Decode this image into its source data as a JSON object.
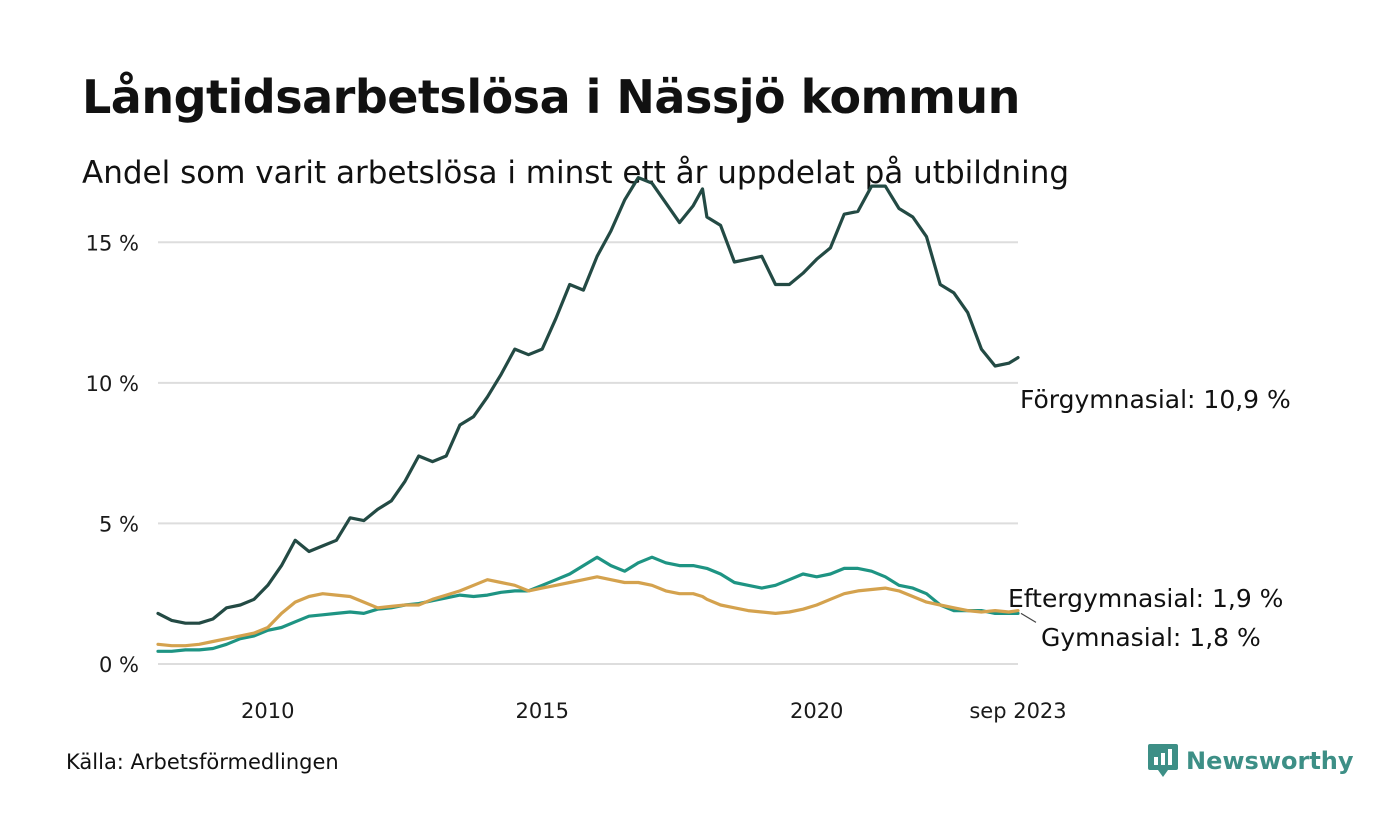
{
  "header": {
    "title": "Långtidsarbetslösa i Nässjö kommun",
    "subtitle": "Andel som varit arbetslösa i minst ett år uppdelat på utbildning"
  },
  "footer": {
    "source": "Källa: Arbetsförmedlingen",
    "brand": "Newsworthy",
    "brand_icon": "newsworthy-logo-icon"
  },
  "colors": {
    "forgymnasial": "#234a44",
    "gymnasial": "#1e9483",
    "eftergymnasial": "#d4a24e",
    "grid": "#dddddd",
    "brand": "#3d8f86"
  },
  "chart_data": {
    "type": "line",
    "title": "Långtidsarbetslösa i Nässjö kommun",
    "subtitle": "Andel som varit arbetslösa i minst ett år uppdelat på utbildning",
    "xlabel": "",
    "ylabel": "",
    "ylim": [
      0,
      17.5
    ],
    "x_range": [
      2008.0,
      2023.667
    ],
    "y_ticks": [
      0,
      5,
      10,
      15
    ],
    "y_tick_labels": [
      "0 %",
      "5 %",
      "10 %",
      "15 %"
    ],
    "x_ticks": [
      2010,
      2015,
      2020,
      2023.667
    ],
    "x_tick_labels": [
      "2010",
      "2015",
      "2020",
      "sep 2023"
    ],
    "grid": true,
    "series": [
      {
        "name": "Förgymnasial",
        "label": "Förgymnasial: 10,9 %",
        "color": "#234a44",
        "points": [
          [
            2008.0,
            1.8
          ],
          [
            2008.25,
            1.55
          ],
          [
            2008.5,
            1.45
          ],
          [
            2008.75,
            1.45
          ],
          [
            2009.0,
            1.6
          ],
          [
            2009.25,
            2.0
          ],
          [
            2009.5,
            2.1
          ],
          [
            2009.75,
            2.3
          ],
          [
            2010.0,
            2.8
          ],
          [
            2010.25,
            3.5
          ],
          [
            2010.5,
            4.4
          ],
          [
            2010.75,
            4.0
          ],
          [
            2011.0,
            4.2
          ],
          [
            2011.25,
            4.4
          ],
          [
            2011.5,
            5.2
          ],
          [
            2011.75,
            5.1
          ],
          [
            2012.0,
            5.5
          ],
          [
            2012.25,
            5.8
          ],
          [
            2012.5,
            6.5
          ],
          [
            2012.75,
            7.4
          ],
          [
            2013.0,
            7.2
          ],
          [
            2013.25,
            7.4
          ],
          [
            2013.5,
            8.5
          ],
          [
            2013.75,
            8.8
          ],
          [
            2014.0,
            9.5
          ],
          [
            2014.25,
            10.3
          ],
          [
            2014.5,
            11.2
          ],
          [
            2014.75,
            11.0
          ],
          [
            2015.0,
            11.2
          ],
          [
            2015.25,
            12.3
          ],
          [
            2015.5,
            13.5
          ],
          [
            2015.75,
            13.3
          ],
          [
            2016.0,
            14.5
          ],
          [
            2016.25,
            15.4
          ],
          [
            2016.5,
            16.5
          ],
          [
            2016.75,
            17.3
          ],
          [
            2017.0,
            17.1
          ],
          [
            2017.25,
            16.4
          ],
          [
            2017.5,
            15.7
          ],
          [
            2017.75,
            16.3
          ],
          [
            2017.92,
            16.9
          ],
          [
            2018.0,
            15.9
          ],
          [
            2018.25,
            15.6
          ],
          [
            2018.5,
            14.3
          ],
          [
            2018.75,
            14.4
          ],
          [
            2019.0,
            14.5
          ],
          [
            2019.25,
            13.5
          ],
          [
            2019.5,
            13.5
          ],
          [
            2019.75,
            13.9
          ],
          [
            2020.0,
            14.4
          ],
          [
            2020.25,
            14.8
          ],
          [
            2020.5,
            16.0
          ],
          [
            2020.75,
            16.1
          ],
          [
            2021.0,
            17.0
          ],
          [
            2021.25,
            17.0
          ],
          [
            2021.5,
            16.2
          ],
          [
            2021.75,
            15.9
          ],
          [
            2022.0,
            15.2
          ],
          [
            2022.25,
            13.5
          ],
          [
            2022.5,
            13.2
          ],
          [
            2022.75,
            12.5
          ],
          [
            2023.0,
            11.2
          ],
          [
            2023.25,
            10.6
          ],
          [
            2023.5,
            10.7
          ],
          [
            2023.667,
            10.9
          ]
        ]
      },
      {
        "name": "Gymnasial",
        "label": "Gymnasial:  1,8 %",
        "color": "#1e9483",
        "points": [
          [
            2008.0,
            0.45
          ],
          [
            2008.25,
            0.45
          ],
          [
            2008.5,
            0.5
          ],
          [
            2008.75,
            0.5
          ],
          [
            2009.0,
            0.55
          ],
          [
            2009.25,
            0.7
          ],
          [
            2009.5,
            0.9
          ],
          [
            2009.75,
            1.0
          ],
          [
            2010.0,
            1.2
          ],
          [
            2010.25,
            1.3
          ],
          [
            2010.5,
            1.5
          ],
          [
            2010.75,
            1.7
          ],
          [
            2011.0,
            1.75
          ],
          [
            2011.25,
            1.8
          ],
          [
            2011.5,
            1.85
          ],
          [
            2011.75,
            1.8
          ],
          [
            2012.0,
            1.95
          ],
          [
            2012.25,
            2.0
          ],
          [
            2012.5,
            2.1
          ],
          [
            2012.75,
            2.15
          ],
          [
            2013.0,
            2.25
          ],
          [
            2013.25,
            2.35
          ],
          [
            2013.5,
            2.45
          ],
          [
            2013.75,
            2.4
          ],
          [
            2014.0,
            2.45
          ],
          [
            2014.25,
            2.55
          ],
          [
            2014.5,
            2.6
          ],
          [
            2014.75,
            2.6
          ],
          [
            2015.0,
            2.8
          ],
          [
            2015.25,
            3.0
          ],
          [
            2015.5,
            3.2
          ],
          [
            2015.75,
            3.5
          ],
          [
            2016.0,
            3.8
          ],
          [
            2016.25,
            3.5
          ],
          [
            2016.5,
            3.3
          ],
          [
            2016.75,
            3.6
          ],
          [
            2017.0,
            3.8
          ],
          [
            2017.25,
            3.6
          ],
          [
            2017.5,
            3.5
          ],
          [
            2017.75,
            3.5
          ],
          [
            2018.0,
            3.4
          ],
          [
            2018.25,
            3.2
          ],
          [
            2018.5,
            2.9
          ],
          [
            2018.75,
            2.8
          ],
          [
            2019.0,
            2.7
          ],
          [
            2019.25,
            2.8
          ],
          [
            2019.5,
            3.0
          ],
          [
            2019.75,
            3.2
          ],
          [
            2020.0,
            3.1
          ],
          [
            2020.25,
            3.2
          ],
          [
            2020.5,
            3.4
          ],
          [
            2020.75,
            3.4
          ],
          [
            2021.0,
            3.3
          ],
          [
            2021.25,
            3.1
          ],
          [
            2021.5,
            2.8
          ],
          [
            2021.75,
            2.7
          ],
          [
            2022.0,
            2.5
          ],
          [
            2022.25,
            2.1
          ],
          [
            2022.5,
            1.9
          ],
          [
            2022.75,
            1.9
          ],
          [
            2023.0,
            1.9
          ],
          [
            2023.25,
            1.8
          ],
          [
            2023.5,
            1.8
          ],
          [
            2023.667,
            1.8
          ]
        ]
      },
      {
        "name": "Eftergymnasial",
        "label": "Eftergymnasial:  1,9 %",
        "color": "#d4a24e",
        "points": [
          [
            2008.0,
            0.7
          ],
          [
            2008.25,
            0.65
          ],
          [
            2008.5,
            0.65
          ],
          [
            2008.75,
            0.7
          ],
          [
            2009.0,
            0.8
          ],
          [
            2009.25,
            0.9
          ],
          [
            2009.5,
            1.0
          ],
          [
            2009.75,
            1.1
          ],
          [
            2010.0,
            1.3
          ],
          [
            2010.25,
            1.8
          ],
          [
            2010.5,
            2.2
          ],
          [
            2010.75,
            2.4
          ],
          [
            2011.0,
            2.5
          ],
          [
            2011.25,
            2.45
          ],
          [
            2011.5,
            2.4
          ],
          [
            2011.75,
            2.2
          ],
          [
            2012.0,
            2.0
          ],
          [
            2012.25,
            2.05
          ],
          [
            2012.5,
            2.1
          ],
          [
            2012.75,
            2.1
          ],
          [
            2013.0,
            2.3
          ],
          [
            2013.25,
            2.45
          ],
          [
            2013.5,
            2.6
          ],
          [
            2013.75,
            2.8
          ],
          [
            2014.0,
            3.0
          ],
          [
            2014.25,
            2.9
          ],
          [
            2014.5,
            2.8
          ],
          [
            2014.75,
            2.6
          ],
          [
            2015.0,
            2.7
          ],
          [
            2015.25,
            2.8
          ],
          [
            2015.5,
            2.9
          ],
          [
            2015.75,
            3.0
          ],
          [
            2016.0,
            3.1
          ],
          [
            2016.25,
            3.0
          ],
          [
            2016.5,
            2.9
          ],
          [
            2016.75,
            2.9
          ],
          [
            2017.0,
            2.8
          ],
          [
            2017.25,
            2.6
          ],
          [
            2017.5,
            2.5
          ],
          [
            2017.75,
            2.5
          ],
          [
            2017.92,
            2.4
          ],
          [
            2018.0,
            2.3
          ],
          [
            2018.25,
            2.1
          ],
          [
            2018.5,
            2.0
          ],
          [
            2018.75,
            1.9
          ],
          [
            2019.0,
            1.85
          ],
          [
            2019.25,
            1.8
          ],
          [
            2019.5,
            1.85
          ],
          [
            2019.75,
            1.95
          ],
          [
            2020.0,
            2.1
          ],
          [
            2020.25,
            2.3
          ],
          [
            2020.5,
            2.5
          ],
          [
            2020.75,
            2.6
          ],
          [
            2021.0,
            2.65
          ],
          [
            2021.25,
            2.7
          ],
          [
            2021.5,
            2.6
          ],
          [
            2021.75,
            2.4
          ],
          [
            2022.0,
            2.2
          ],
          [
            2022.25,
            2.1
          ],
          [
            2022.5,
            2.0
          ],
          [
            2022.75,
            1.9
          ],
          [
            2023.0,
            1.85
          ],
          [
            2023.25,
            1.9
          ],
          [
            2023.5,
            1.85
          ],
          [
            2023.667,
            1.9
          ]
        ]
      }
    ]
  }
}
